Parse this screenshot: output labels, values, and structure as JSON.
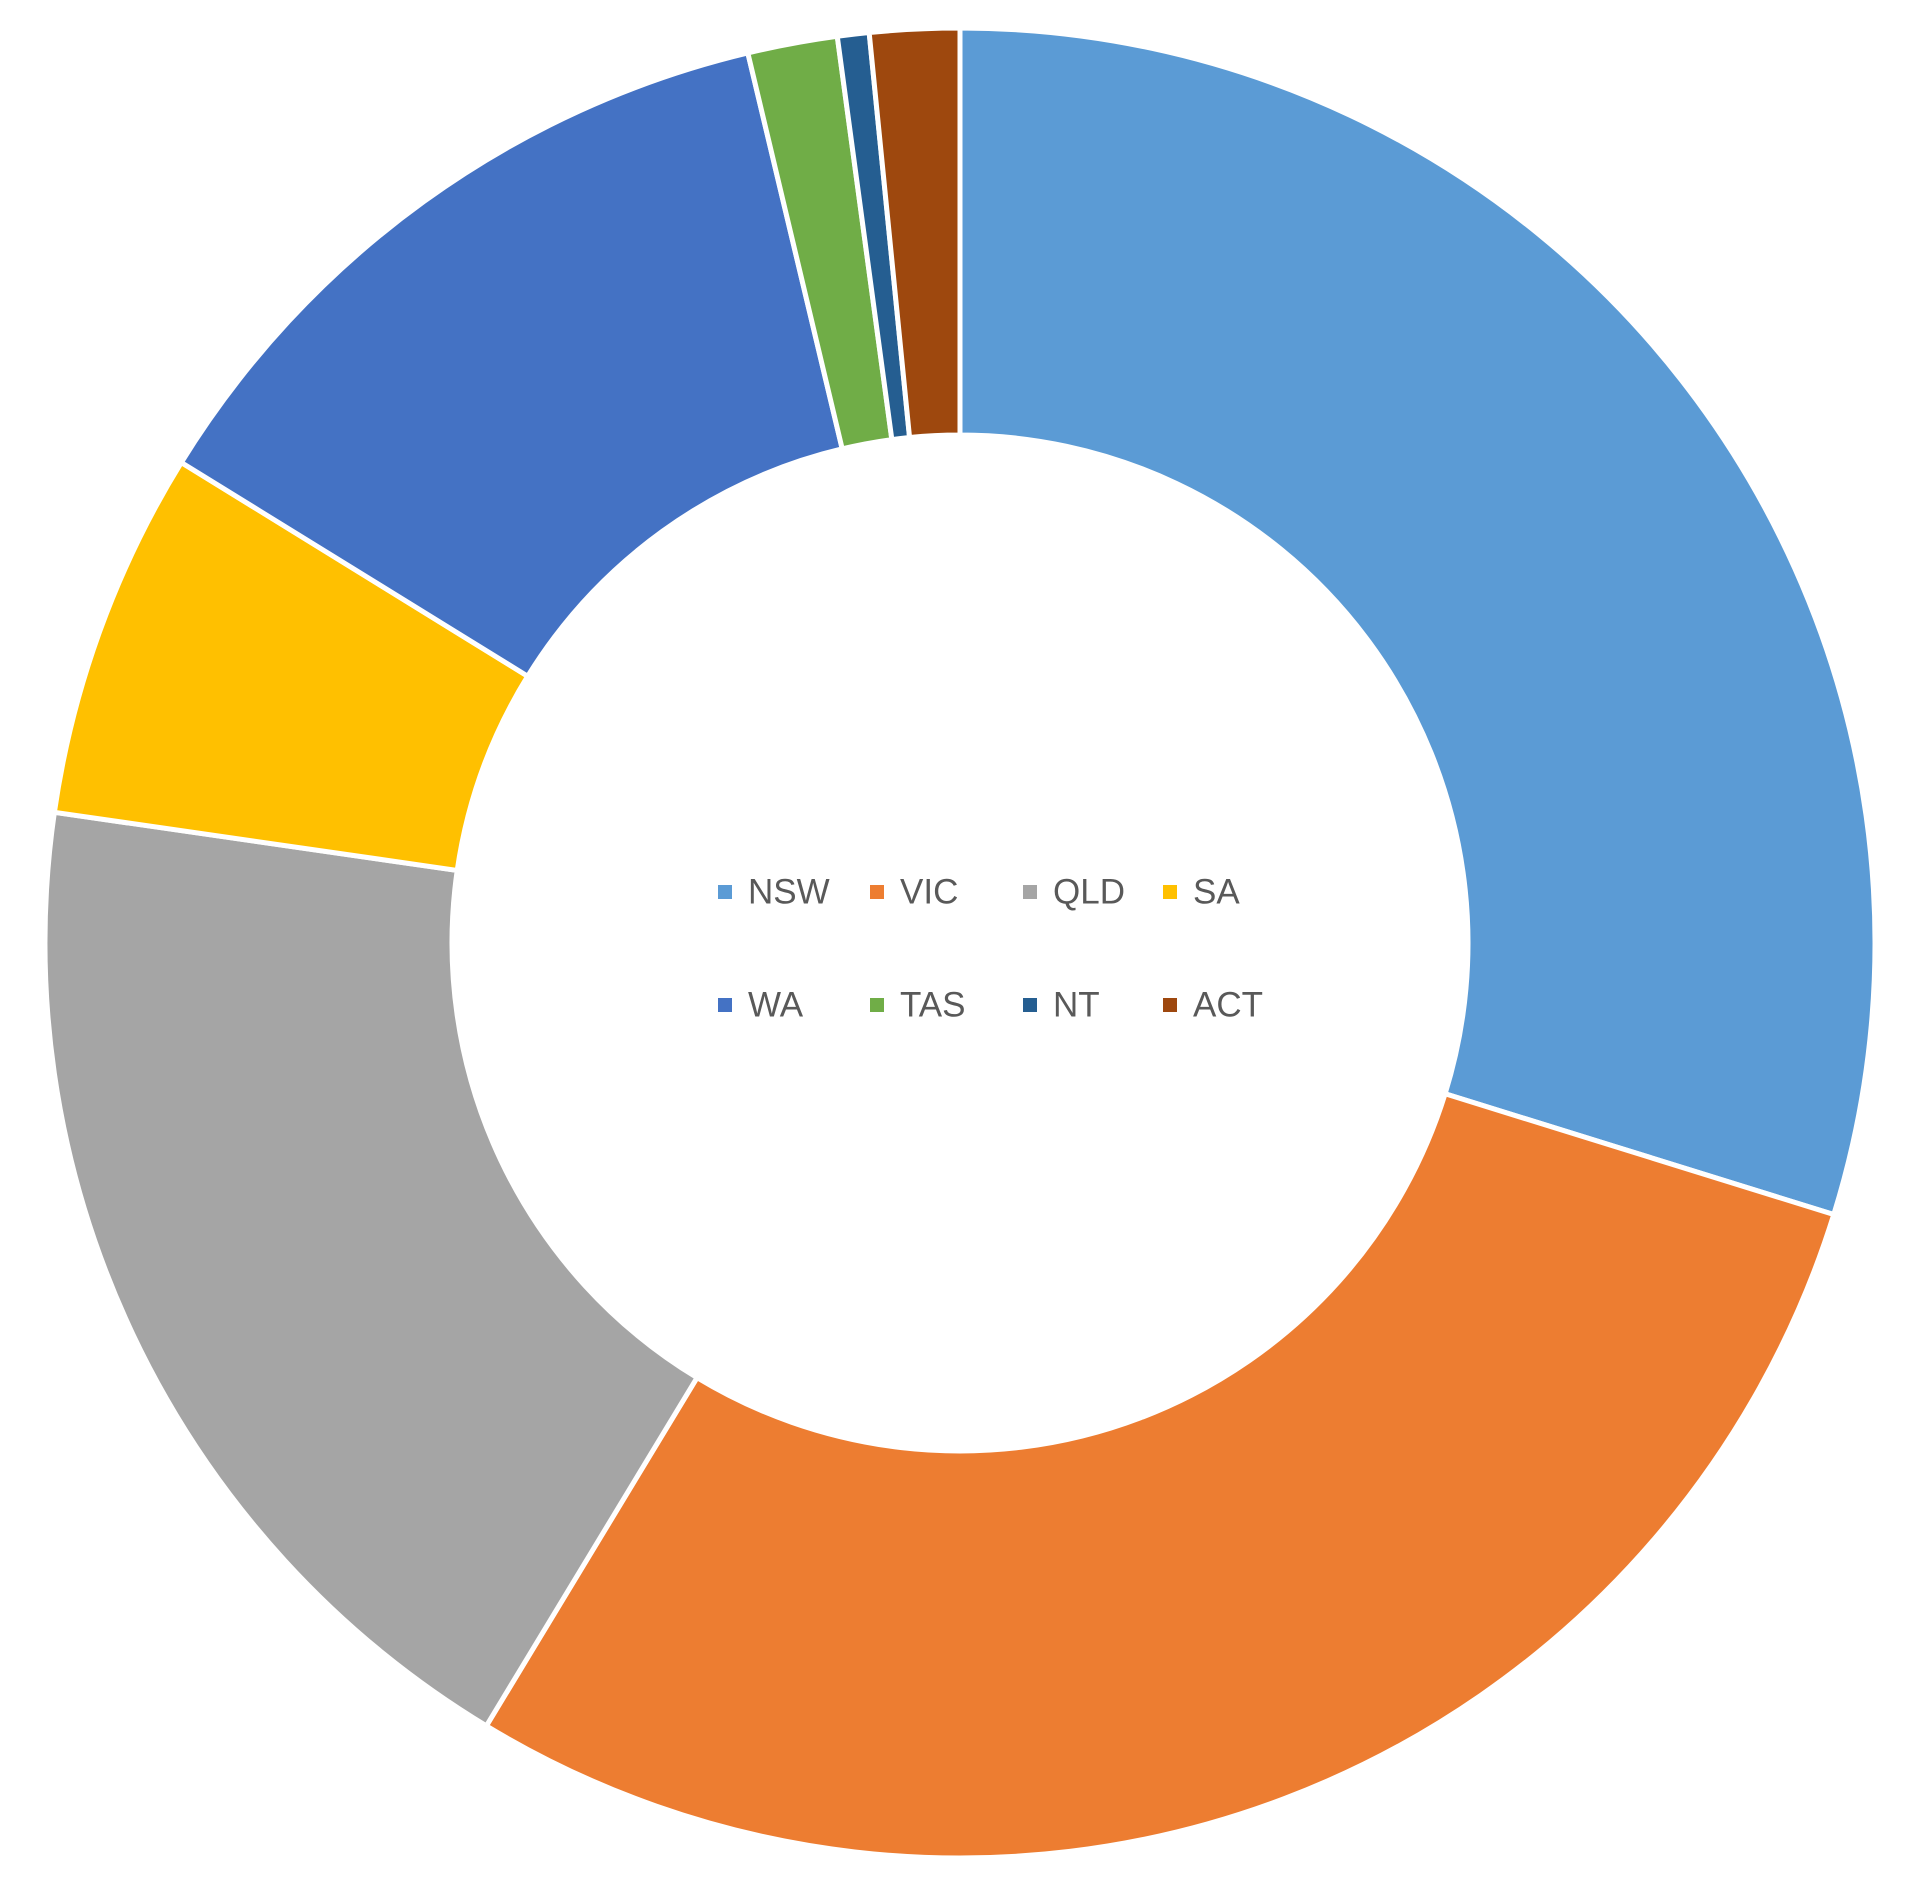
{
  "chart_data": {
    "type": "pie",
    "variant": "doughnut",
    "title": "",
    "categories": [
      "NSW",
      "VIC",
      "QLD",
      "SA",
      "WA",
      "TAS",
      "NT",
      "ACT"
    ],
    "values": [
      32.0,
      31.0,
      20.0,
      7.0,
      13.4,
      1.7,
      0.6,
      1.7
    ],
    "colors": [
      "#5B9BD5",
      "#ED7D31",
      "#A5A5A5",
      "#FFC000",
      "#4472C4",
      "#70AD47",
      "#255E91",
      "#9E480E"
    ],
    "start_angle_deg": 0,
    "direction": "clockwise",
    "legend": {
      "position": "center",
      "rows": [
        [
          "NSW",
          "VIC",
          "QLD",
          "SA"
        ],
        [
          "WA",
          "TAS",
          "NT",
          "ACT"
        ]
      ]
    }
  }
}
